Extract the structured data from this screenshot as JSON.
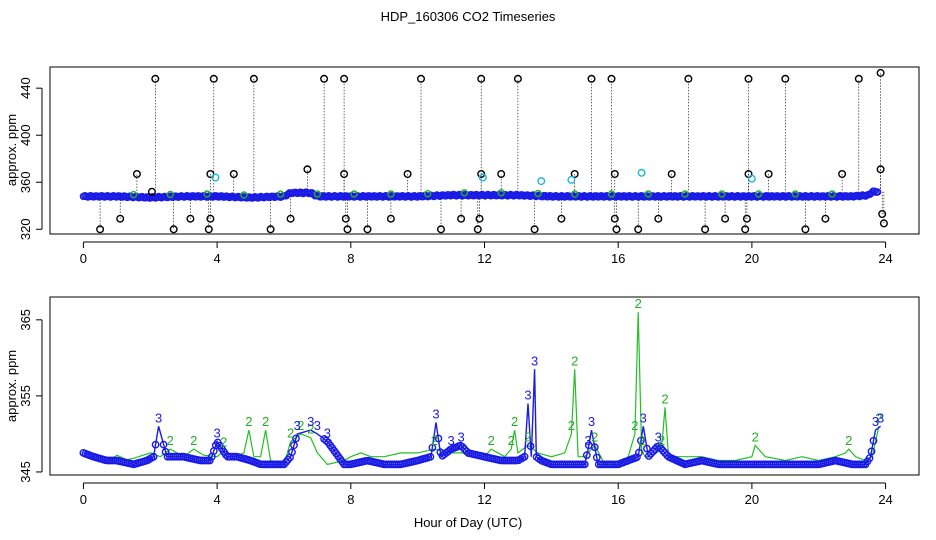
{
  "page": {
    "title": "HDP_160306  CO2 Timeseries",
    "xlabel": "Hour of Day (UTC)"
  },
  "colors": {
    "reference": "#000000",
    "reference_outlier": "#1fb8d8",
    "sensor_2": "#22b022",
    "sensor_3": "#1a1ae6"
  },
  "chart_data": [
    {
      "type": "scatter",
      "title": "",
      "xlabel": "",
      "ylabel": "approx. ppm",
      "xlim": [
        -1,
        25
      ],
      "ylim": [
        316,
        458
      ],
      "xticks": [
        0,
        4,
        8,
        12,
        16,
        20,
        24
      ],
      "yticks": [
        320,
        360,
        400,
        440
      ],
      "baseline": [
        [
          0.0,
          348
        ],
        [
          1.0,
          348
        ],
        [
          2.0,
          347
        ],
        [
          3.0,
          348
        ],
        [
          4.0,
          348
        ],
        [
          5.0,
          347
        ],
        [
          6.0,
          348
        ],
        [
          6.2,
          351
        ],
        [
          6.8,
          351
        ],
        [
          7.0,
          348
        ],
        [
          8.0,
          348
        ],
        [
          9.0,
          348
        ],
        [
          10.0,
          348
        ],
        [
          11.0,
          349
        ],
        [
          12.0,
          349
        ],
        [
          13.0,
          349
        ],
        [
          14.0,
          348
        ],
        [
          15.0,
          348
        ],
        [
          16.0,
          348
        ],
        [
          17.0,
          348
        ],
        [
          18.0,
          348
        ],
        [
          19.0,
          348
        ],
        [
          20.0,
          348
        ],
        [
          21.0,
          348
        ],
        [
          22.0,
          348
        ],
        [
          23.0,
          348
        ],
        [
          23.5,
          349
        ],
        [
          23.6,
          352
        ],
        [
          23.8,
          352
        ]
      ],
      "spikes": [
        [
          2.15,
          448
        ],
        [
          3.9,
          448
        ],
        [
          5.1,
          448
        ],
        [
          7.2,
          448
        ],
        [
          7.8,
          448
        ],
        [
          10.1,
          448
        ],
        [
          11.9,
          448
        ],
        [
          13.0,
          448
        ],
        [
          15.2,
          448
        ],
        [
          15.8,
          448
        ],
        [
          18.1,
          448
        ],
        [
          19.9,
          448
        ],
        [
          21.0,
          448
        ],
        [
          23.2,
          448
        ],
        [
          23.85,
          453
        ],
        [
          0.5,
          320
        ],
        [
          1.1,
          329
        ],
        [
          1.6,
          367
        ],
        [
          2.05,
          352
        ],
        [
          2.7,
          320
        ],
        [
          3.2,
          329
        ],
        [
          3.75,
          320
        ],
        [
          3.8,
          329
        ],
        [
          3.8,
          367
        ],
        [
          4.5,
          367
        ],
        [
          5.6,
          320
        ],
        [
          6.2,
          329
        ],
        [
          6.7,
          371
        ],
        [
          7.8,
          367
        ],
        [
          7.85,
          329
        ],
        [
          7.9,
          320
        ],
        [
          8.5,
          320
        ],
        [
          9.2,
          329
        ],
        [
          9.7,
          367
        ],
        [
          10.7,
          320
        ],
        [
          11.3,
          329
        ],
        [
          11.8,
          320
        ],
        [
          11.85,
          329
        ],
        [
          11.9,
          367
        ],
        [
          12.5,
          367
        ],
        [
          13.5,
          320
        ],
        [
          14.3,
          329
        ],
        [
          14.7,
          367
        ],
        [
          15.9,
          367
        ],
        [
          15.9,
          329
        ],
        [
          15.95,
          320
        ],
        [
          16.6,
          320
        ],
        [
          17.2,
          329
        ],
        [
          17.6,
          367
        ],
        [
          18.6,
          320
        ],
        [
          19.2,
          329
        ],
        [
          19.8,
          320
        ],
        [
          19.85,
          329
        ],
        [
          19.9,
          367
        ],
        [
          20.5,
          367
        ],
        [
          21.6,
          320
        ],
        [
          22.2,
          329
        ],
        [
          22.7,
          367
        ],
        [
          23.85,
          371
        ],
        [
          23.9,
          333
        ],
        [
          23.95,
          325
        ]
      ],
      "outliers": [
        [
          3.95,
          364
        ],
        [
          11.95,
          364
        ],
        [
          13.7,
          361
        ],
        [
          14.6,
          362
        ],
        [
          16.7,
          368
        ],
        [
          20.0,
          363
        ]
      ]
    },
    {
      "type": "line",
      "title": "",
      "xlabel": "Hour of Day (UTC)",
      "ylabel": "approx. ppm",
      "xlim": [
        -1,
        25
      ],
      "ylim": [
        344.6,
        368
      ],
      "xticks": [
        0,
        4,
        8,
        12,
        16,
        20,
        24
      ],
      "yticks": [
        345,
        355,
        365
      ],
      "series": [
        {
          "name": "2",
          "x": [
            0.0,
            0.3,
            0.8,
            1.0,
            1.3,
            1.5,
            2.0,
            2.3,
            2.6,
            3.0,
            3.3,
            3.6,
            4.0,
            4.2,
            4.5,
            4.8,
            4.95,
            5.1,
            5.3,
            5.45,
            5.6,
            6.0,
            6.2,
            6.5,
            6.8,
            7.0,
            7.3,
            7.8,
            8.0,
            8.3,
            8.6,
            9.0,
            9.5,
            10.0,
            10.5,
            11.0,
            11.5,
            12.0,
            12.2,
            12.6,
            12.8,
            12.9,
            13.0,
            13.3,
            13.6,
            14.0,
            14.4,
            14.6,
            14.7,
            14.8,
            15.0,
            15.3,
            15.6,
            16.0,
            16.3,
            16.5,
            16.6,
            16.7,
            16.8,
            17.0,
            17.3,
            17.4,
            17.5,
            17.7,
            18.0,
            18.5,
            19.0,
            19.5,
            20.0,
            20.1,
            20.4,
            21.0,
            21.5,
            22.0,
            22.5,
            22.8,
            22.9,
            23.1,
            23.4,
            23.6,
            23.8
          ],
          "values": [
            347.0,
            346.8,
            346.5,
            347.2,
            346.6,
            346.8,
            347.5,
            347.0,
            348.0,
            347.0,
            348.0,
            347.2,
            347.0,
            347.8,
            347.0,
            347.5,
            350.5,
            347.0,
            347.0,
            350.5,
            346.5,
            346.0,
            349.0,
            350.0,
            349.5,
            347.5,
            346.0,
            346.5,
            347.0,
            347.5,
            347.0,
            347.0,
            347.5,
            347.5,
            348.0,
            347.5,
            347.5,
            347.0,
            348.0,
            347.0,
            348.0,
            350.5,
            347.5,
            348.5,
            347.5,
            347.0,
            347.5,
            350.0,
            358.5,
            347.0,
            347.0,
            348.5,
            346.0,
            346.0,
            347.0,
            350.0,
            366.0,
            348.0,
            347.0,
            347.0,
            348.0,
            353.5,
            347.5,
            347.0,
            347.0,
            347.0,
            346.5,
            346.5,
            347.0,
            348.5,
            347.0,
            346.5,
            347.0,
            346.5,
            347.0,
            347.5,
            348.0,
            347.0,
            346.5,
            347.0,
            351.0
          ]
        },
        {
          "name": "3",
          "x": [
            0.0,
            0.3,
            0.7,
            1.0,
            1.5,
            1.9,
            2.1,
            2.25,
            2.5,
            3.0,
            3.5,
            3.8,
            4.0,
            4.3,
            4.6,
            5.0,
            5.3,
            5.6,
            6.0,
            6.2,
            6.4,
            6.8,
            7.0,
            7.3,
            7.8,
            8.0,
            8.5,
            9.0,
            9.5,
            10.0,
            10.4,
            10.55,
            10.7,
            11.0,
            11.3,
            11.5,
            12.0,
            12.5,
            13.0,
            13.2,
            13.3,
            13.4,
            13.5,
            13.55,
            13.7,
            14.0,
            14.5,
            15.0,
            15.1,
            15.2,
            15.4,
            15.6,
            16.0,
            16.3,
            16.6,
            16.75,
            16.9,
            17.2,
            17.5,
            18.0,
            18.5,
            19.0,
            19.5,
            20.0,
            20.5,
            21.0,
            21.5,
            22.0,
            22.5,
            23.0,
            23.4,
            23.55,
            23.7,
            23.85
          ],
          "values": [
            347.5,
            347.0,
            346.5,
            346.5,
            346.0,
            346.5,
            347.0,
            351.0,
            347.0,
            347.0,
            346.5,
            346.5,
            349.0,
            347.0,
            347.0,
            346.5,
            346.0,
            346.0,
            346.0,
            347.0,
            350.0,
            350.5,
            350.0,
            349.0,
            346.0,
            346.0,
            346.5,
            346.0,
            346.0,
            346.5,
            347.0,
            351.5,
            347.0,
            348.0,
            348.5,
            347.5,
            347.0,
            346.5,
            346.5,
            347.0,
            354.0,
            347.0,
            358.5,
            347.0,
            346.5,
            346.0,
            346.0,
            346.0,
            348.0,
            350.5,
            346.0,
            346.0,
            346.0,
            346.5,
            347.0,
            351.0,
            347.0,
            348.5,
            347.0,
            346.0,
            346.5,
            346.0,
            346.0,
            346.0,
            346.0,
            346.0,
            346.0,
            346.0,
            346.5,
            346.0,
            346.0,
            347.0,
            350.5,
            351.0
          ]
        }
      ]
    }
  ]
}
